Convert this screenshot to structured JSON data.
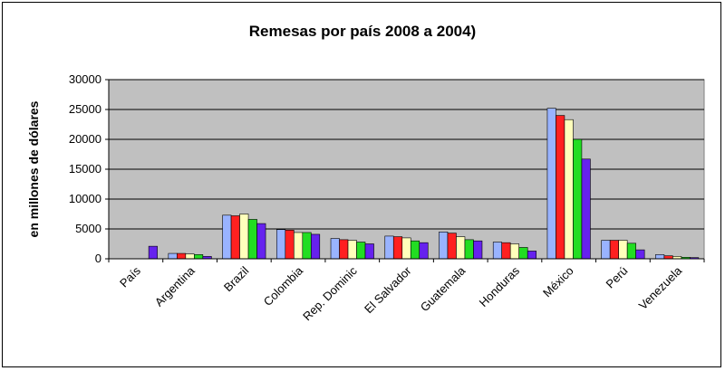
{
  "chart_data": {
    "type": "bar",
    "title": "Remesas por país 2008 a 2004)",
    "xlabel": "",
    "ylabel": "en millones de dólares",
    "ylim": [
      0,
      30000
    ],
    "yticks": [
      0,
      5000,
      10000,
      15000,
      20000,
      25000,
      30000
    ],
    "ytick_labels": [
      "0",
      "5000",
      "10000",
      "15000",
      "20000",
      "25000",
      "30000"
    ],
    "grid": true,
    "legend": "none",
    "categories": [
      "País",
      "Argentina",
      "Brazil",
      "Colombia",
      "Rep. Dominic",
      "El Salvador",
      "Guatemala",
      "Honduras",
      "México",
      "Perú",
      "Venezuela"
    ],
    "series": [
      {
        "color": "#99b3ff",
        "values": [
          0,
          900,
          7300,
          4900,
          3400,
          3800,
          4500,
          2800,
          25200,
          3100,
          700
        ]
      },
      {
        "color": "#ff2020",
        "values": [
          0,
          900,
          7200,
          4800,
          3200,
          3700,
          4300,
          2700,
          24000,
          3100,
          500
        ]
      },
      {
        "color": "#ffffbb",
        "values": [
          0,
          800,
          7500,
          4400,
          3100,
          3500,
          3700,
          2500,
          23300,
          3100,
          400
        ]
      },
      {
        "color": "#22dd22",
        "values": [
          0,
          700,
          6600,
          4400,
          2800,
          3000,
          3200,
          1900,
          20000,
          2600,
          250
        ]
      },
      {
        "color": "#6622ee",
        "values": [
          2100,
          400,
          5900,
          4100,
          2500,
          2700,
          3000,
          1300,
          16700,
          1500,
          200
        ]
      }
    ]
  }
}
